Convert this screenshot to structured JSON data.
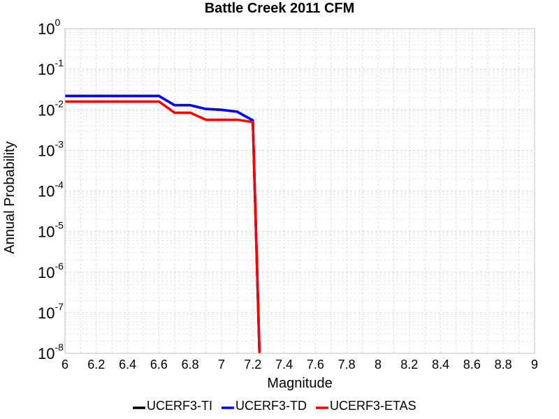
{
  "chart_data": {
    "type": "line",
    "title": "Battle Creek 2011 CFM",
    "xlabel": "Magnitude",
    "ylabel": "Annual Probability",
    "xlim": [
      6,
      9
    ],
    "ylim": [
      1e-08,
      1
    ],
    "yscale": "log",
    "grid": true,
    "legend_position": "bottom",
    "x_ticks": [
      "6",
      "6.2",
      "6.4",
      "6.6",
      "6.8",
      "7",
      "7.2",
      "7.4",
      "7.6",
      "7.8",
      "8",
      "8.2",
      "8.4",
      "8.6",
      "8.8",
      "9"
    ],
    "y_ticks": [
      {
        "base": "10",
        "exp": "0"
      },
      {
        "base": "10",
        "exp": "-1"
      },
      {
        "base": "10",
        "exp": "-2"
      },
      {
        "base": "10",
        "exp": "-3"
      },
      {
        "base": "10",
        "exp": "-4"
      },
      {
        "base": "10",
        "exp": "-5"
      },
      {
        "base": "10",
        "exp": "-6"
      },
      {
        "base": "10",
        "exp": "-7"
      },
      {
        "base": "10",
        "exp": "-8"
      }
    ],
    "series": [
      {
        "name": "UCERF3-TI",
        "color": "#000000",
        "x": [
          6.0,
          6.1,
          6.2,
          6.3,
          6.4,
          6.5,
          6.6,
          6.7,
          6.8,
          6.9,
          7.0,
          7.1,
          7.2,
          7.25
        ],
        "y": [
          0.022,
          0.022,
          0.022,
          0.022,
          0.022,
          0.022,
          0.022,
          0.013,
          0.013,
          0.0105,
          0.01,
          0.009,
          0.0055,
          1e-09
        ]
      },
      {
        "name": "UCERF3-TD",
        "color": "#0000ff",
        "x": [
          6.0,
          6.1,
          6.2,
          6.3,
          6.4,
          6.5,
          6.6,
          6.7,
          6.8,
          6.9,
          7.0,
          7.1,
          7.2,
          7.25
        ],
        "y": [
          0.022,
          0.022,
          0.022,
          0.022,
          0.022,
          0.022,
          0.022,
          0.013,
          0.013,
          0.0105,
          0.01,
          0.009,
          0.0055,
          1e-09
        ]
      },
      {
        "name": "UCERF3-ETAS",
        "color": "#ff0000",
        "x": [
          6.0,
          6.1,
          6.2,
          6.3,
          6.4,
          6.5,
          6.6,
          6.7,
          6.8,
          6.9,
          7.0,
          7.1,
          7.2,
          7.25
        ],
        "y": [
          0.016,
          0.016,
          0.016,
          0.016,
          0.016,
          0.016,
          0.016,
          0.0085,
          0.0085,
          0.0057,
          0.0057,
          0.0057,
          0.005,
          1e-09
        ]
      }
    ]
  }
}
